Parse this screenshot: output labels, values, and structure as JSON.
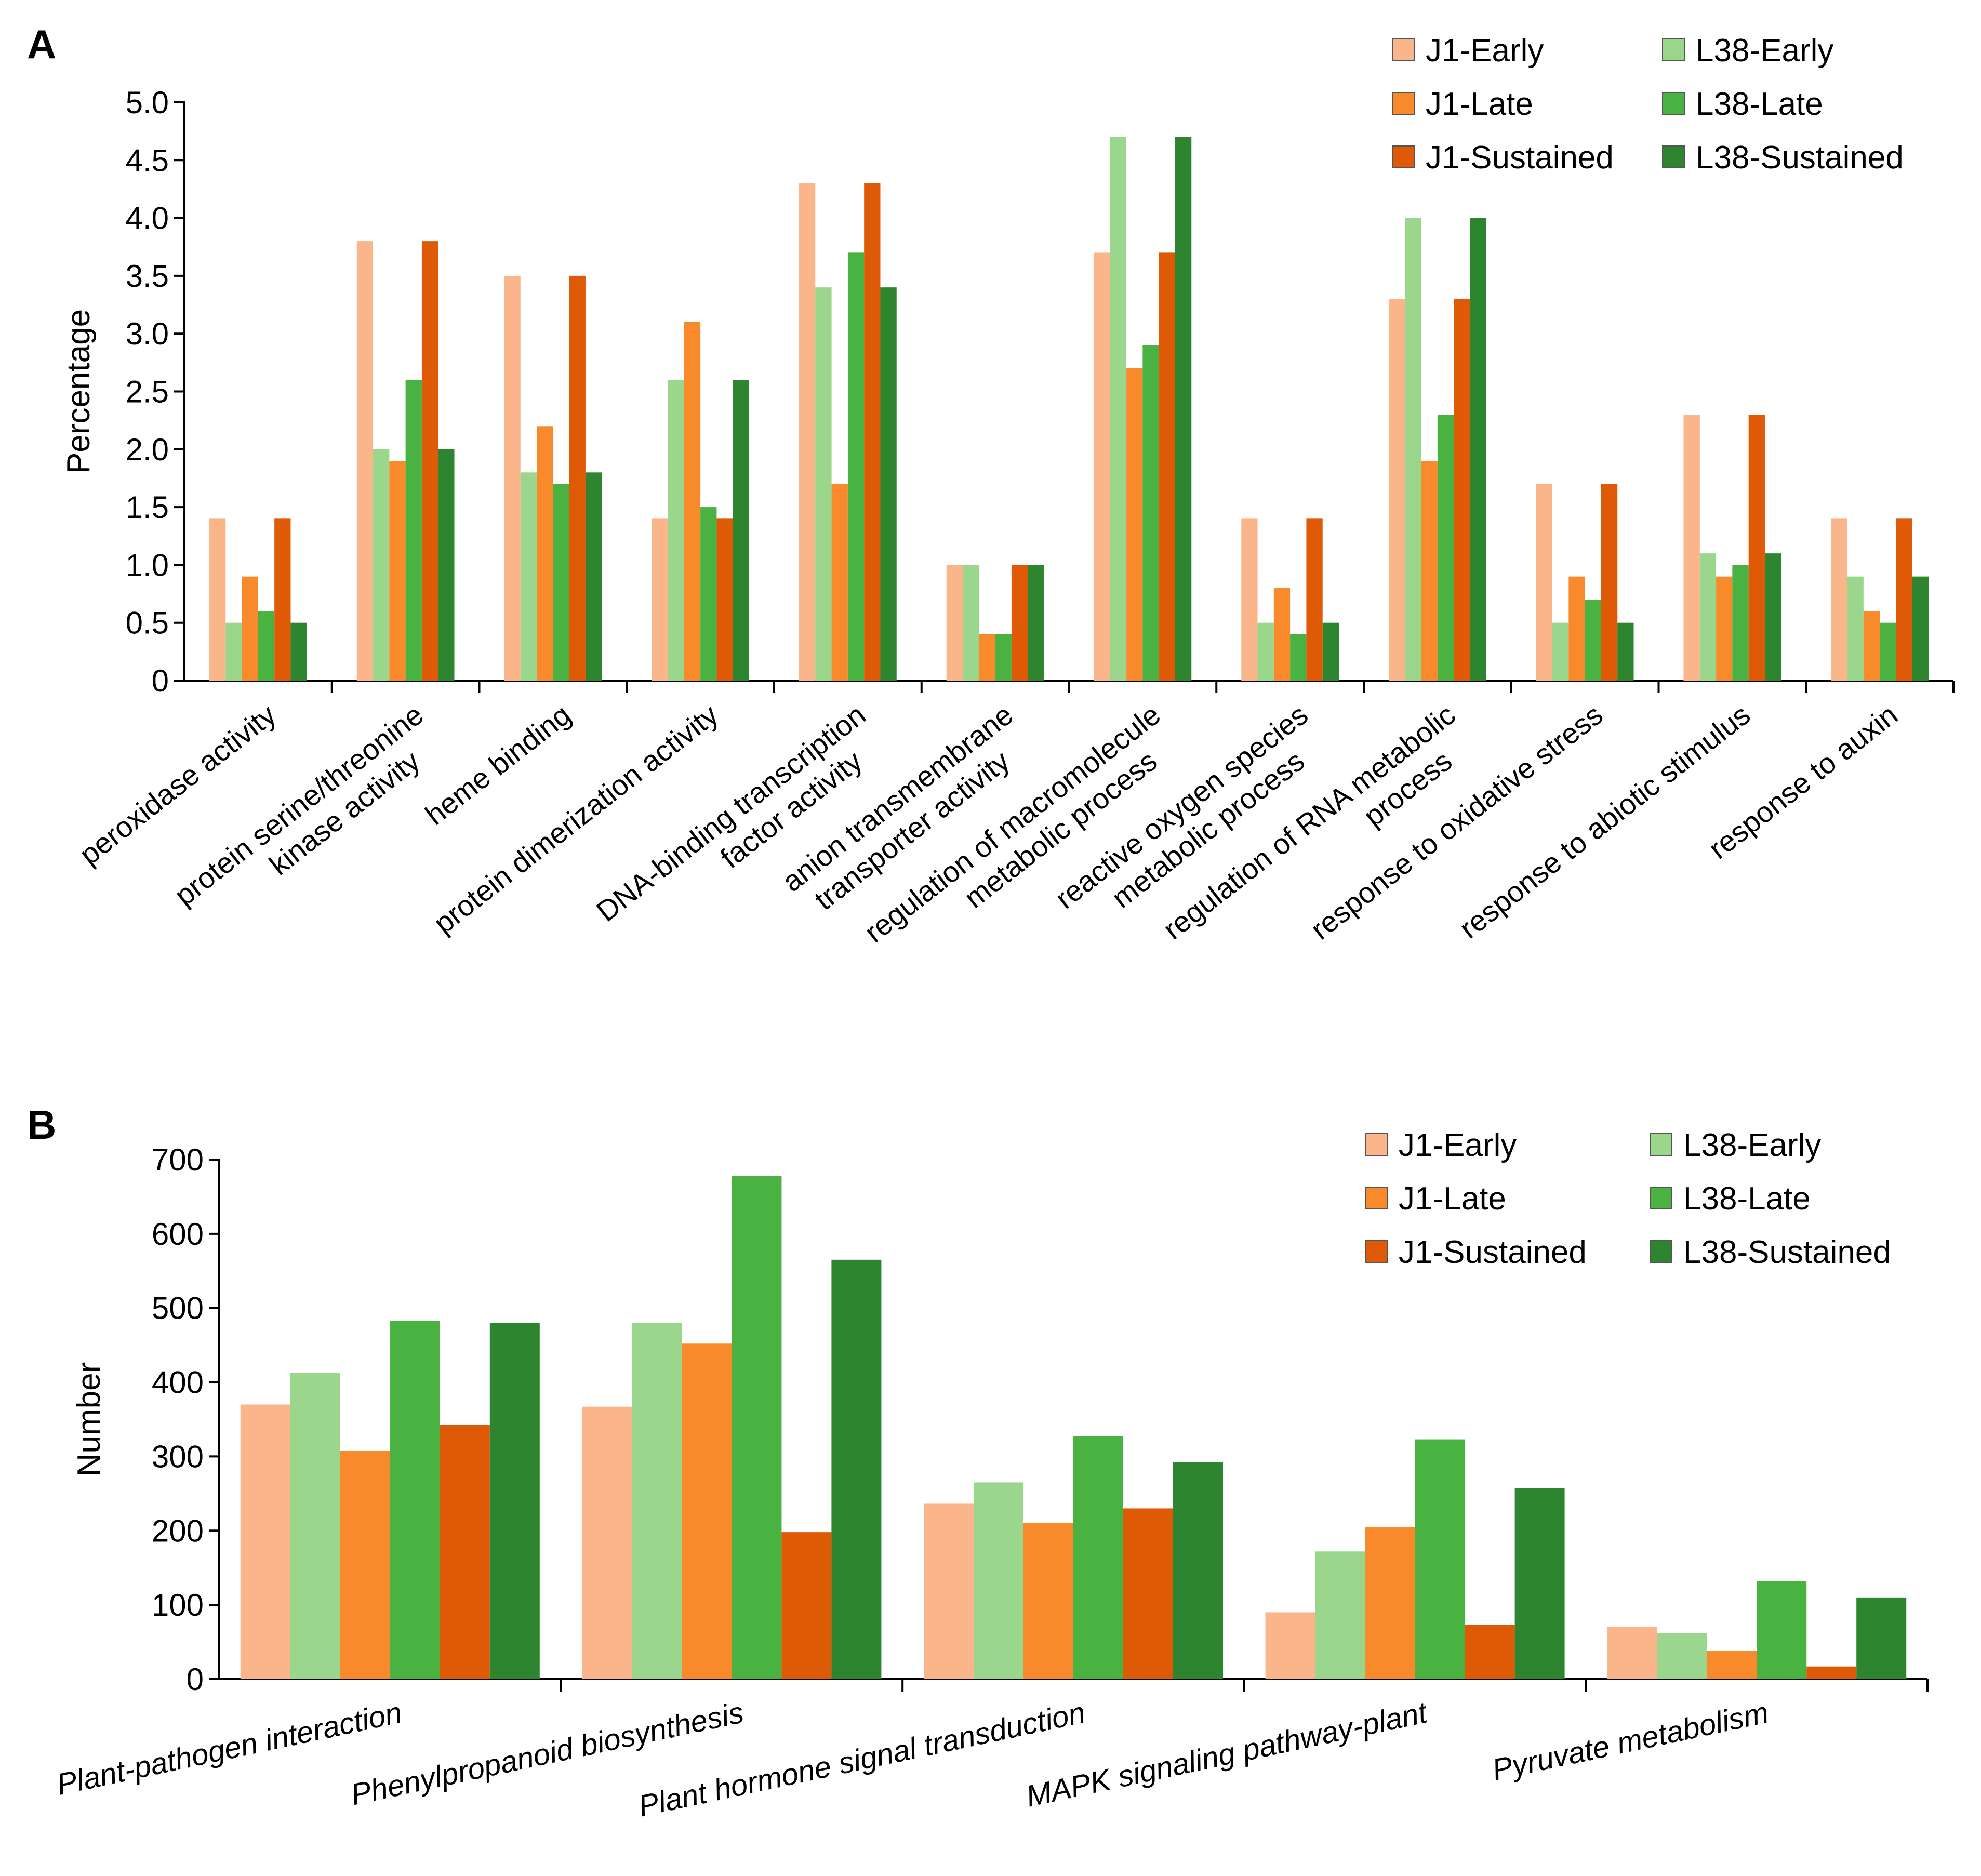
{
  "colors": {
    "J1-Early": "#fbb58b",
    "J1-Late": "#f98a2c",
    "J1-Sustained": "#df5a07",
    "L38-Early": "#9ad68b",
    "L38-Late": "#4ab241",
    "L38-Sustained": "#2e8530"
  },
  "chart_data": [
    {
      "type": "bar",
      "panel": "A",
      "title": "",
      "xlabel": "",
      "ylabel": "Percentage",
      "ylim": [
        0,
        5.0
      ],
      "yticks": [
        "0",
        "0.5",
        "1.0",
        "1.5",
        "2.0",
        "2.5",
        "3.0",
        "3.5",
        "4.0",
        "4.5",
        "5.0"
      ],
      "legend_position": "top-right",
      "legend": [
        "J1-Early",
        "J1-Late",
        "J1-Sustained",
        "L38-Early",
        "L38-Late",
        "L38-Sustained"
      ],
      "categories": [
        [
          "peroxidase activity"
        ],
        [
          "protein serine/threonine",
          "kinase activity"
        ],
        [
          "heme binding"
        ],
        [
          "protein dimerization activity"
        ],
        [
          "DNA-binding transcription",
          "factor activity"
        ],
        [
          "anion transmembrane",
          "transporter activity"
        ],
        [
          "regulation of macromolecule",
          "metabolic process"
        ],
        [
          "reactive oxygen species",
          "metabolic process"
        ],
        [
          "regulation of RNA metabolic",
          "process"
        ],
        [
          "response to oxidative stress"
        ],
        [
          "response to abiotic stimulus"
        ],
        [
          "response to auxin"
        ]
      ],
      "series": [
        {
          "name": "J1-Early",
          "values": [
            1.4,
            3.8,
            3.5,
            1.4,
            4.3,
            1.0,
            3.7,
            1.4,
            3.3,
            1.7,
            2.3,
            1.4
          ]
        },
        {
          "name": "L38-Early",
          "values": [
            0.5,
            2.0,
            1.8,
            2.6,
            3.4,
            1.0,
            4.7,
            0.5,
            4.0,
            0.5,
            1.1,
            0.9
          ]
        },
        {
          "name": "J1-Late",
          "values": [
            0.9,
            1.9,
            2.2,
            3.1,
            1.7,
            0.4,
            2.7,
            0.8,
            1.9,
            0.9,
            0.9,
            0.6
          ]
        },
        {
          "name": "L38-Late",
          "values": [
            0.6,
            2.6,
            1.7,
            1.5,
            3.7,
            0.4,
            2.9,
            0.4,
            2.3,
            0.7,
            1.0,
            0.5
          ]
        },
        {
          "name": "J1-Sustained",
          "values": [
            1.4,
            3.8,
            3.5,
            1.4,
            4.3,
            1.0,
            3.7,
            1.4,
            3.3,
            1.7,
            2.3,
            1.4
          ]
        },
        {
          "name": "L38-Sustained",
          "values": [
            0.5,
            2.0,
            1.8,
            2.6,
            3.4,
            1.0,
            4.7,
            0.5,
            4.0,
            0.5,
            1.1,
            0.9
          ]
        }
      ]
    },
    {
      "type": "bar",
      "panel": "B",
      "title": "",
      "xlabel": "",
      "ylabel": "Number",
      "ylim": [
        0,
        700
      ],
      "yticks": [
        "0",
        "100",
        "200",
        "300",
        "400",
        "500",
        "600",
        "700"
      ],
      "legend_position": "top-right",
      "legend": [
        "J1-Early",
        "J1-Late",
        "J1-Sustained",
        "L38-Early",
        "L38-Late",
        "L38-Sustained"
      ],
      "categories": [
        [
          "Plant-pathogen interaction"
        ],
        [
          "Phenylpropanoid biosynthesis"
        ],
        [
          "Plant hormone signal transduction"
        ],
        [
          "MAPK signaling pathway-plant"
        ],
        [
          "Pyruvate metabolism"
        ]
      ],
      "series": [
        {
          "name": "J1-Early",
          "values": [
            370,
            367,
            237,
            90,
            70
          ]
        },
        {
          "name": "L38-Early",
          "values": [
            413,
            480,
            265,
            172,
            62
          ]
        },
        {
          "name": "J1-Late",
          "values": [
            308,
            452,
            210,
            205,
            38
          ]
        },
        {
          "name": "L38-Late",
          "values": [
            483,
            678,
            327,
            323,
            132
          ]
        },
        {
          "name": "J1-Sustained",
          "values": [
            343,
            198,
            230,
            73,
            17
          ]
        },
        {
          "name": "L38-Sustained",
          "values": [
            480,
            565,
            292,
            257,
            110
          ]
        }
      ]
    }
  ]
}
